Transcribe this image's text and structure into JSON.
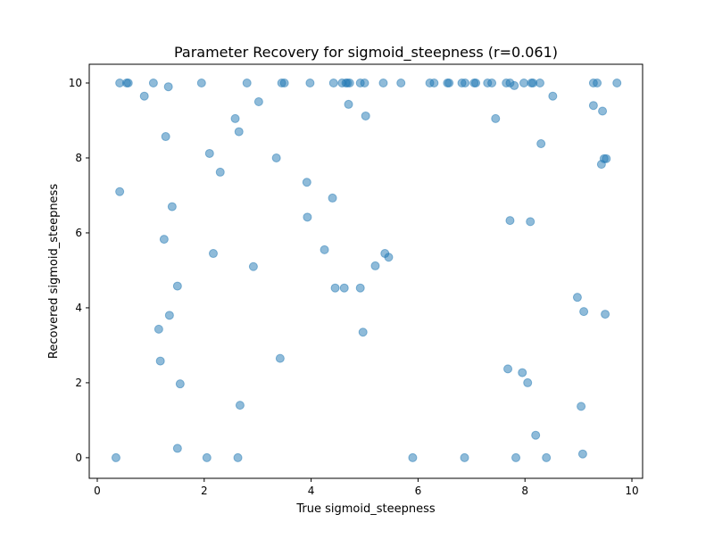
{
  "chart_data": {
    "type": "scatter",
    "title": "Parameter Recovery for sigmoid_steepness (r=0.061)",
    "xlabel": "True sigmoid_steepness",
    "ylabel": "Recovered sigmoid_steepness",
    "xlim": [
      -0.15,
      10.2
    ],
    "ylim": [
      -0.55,
      10.5
    ],
    "x_ticks": [
      0,
      2,
      4,
      6,
      8,
      10
    ],
    "y_ticks": [
      0,
      2,
      4,
      6,
      8,
      10
    ],
    "grid": false,
    "marker_color": "#1f77b4",
    "marker_alpha": 0.5,
    "points": [
      {
        "x": 0.42,
        "y": 10.0
      },
      {
        "x": 0.55,
        "y": 10.0
      },
      {
        "x": 0.58,
        "y": 10.0
      },
      {
        "x": 1.05,
        "y": 10.0
      },
      {
        "x": 1.33,
        "y": 9.9
      },
      {
        "x": 1.95,
        "y": 10.0
      },
      {
        "x": 2.8,
        "y": 10.0
      },
      {
        "x": 3.45,
        "y": 10.0
      },
      {
        "x": 3.5,
        "y": 10.0
      },
      {
        "x": 3.98,
        "y": 10.0
      },
      {
        "x": 4.42,
        "y": 10.0
      },
      {
        "x": 4.58,
        "y": 10.0
      },
      {
        "x": 4.65,
        "y": 10.0
      },
      {
        "x": 4.68,
        "y": 10.0
      },
      {
        "x": 4.72,
        "y": 10.0
      },
      {
        "x": 4.92,
        "y": 10.0
      },
      {
        "x": 5.0,
        "y": 10.0
      },
      {
        "x": 5.35,
        "y": 10.0
      },
      {
        "x": 5.68,
        "y": 10.0
      },
      {
        "x": 6.22,
        "y": 10.0
      },
      {
        "x": 6.3,
        "y": 10.0
      },
      {
        "x": 6.55,
        "y": 10.0
      },
      {
        "x": 6.58,
        "y": 10.0
      },
      {
        "x": 6.82,
        "y": 10.0
      },
      {
        "x": 6.88,
        "y": 10.0
      },
      {
        "x": 7.05,
        "y": 10.0
      },
      {
        "x": 7.08,
        "y": 10.0
      },
      {
        "x": 7.3,
        "y": 10.0
      },
      {
        "x": 7.38,
        "y": 10.0
      },
      {
        "x": 7.65,
        "y": 10.0
      },
      {
        "x": 7.72,
        "y": 10.0
      },
      {
        "x": 7.98,
        "y": 10.0
      },
      {
        "x": 8.12,
        "y": 10.0
      },
      {
        "x": 8.15,
        "y": 10.0
      },
      {
        "x": 8.28,
        "y": 10.0
      },
      {
        "x": 9.28,
        "y": 10.0
      },
      {
        "x": 9.35,
        "y": 10.0
      },
      {
        "x": 9.72,
        "y": 10.0
      },
      {
        "x": 7.8,
        "y": 9.93
      },
      {
        "x": 0.88,
        "y": 9.65
      },
      {
        "x": 8.52,
        "y": 9.65
      },
      {
        "x": 3.02,
        "y": 9.5
      },
      {
        "x": 4.7,
        "y": 9.43
      },
      {
        "x": 9.28,
        "y": 9.4
      },
      {
        "x": 9.45,
        "y": 9.25
      },
      {
        "x": 5.02,
        "y": 9.12
      },
      {
        "x": 2.58,
        "y": 9.05
      },
      {
        "x": 7.45,
        "y": 9.05
      },
      {
        "x": 2.65,
        "y": 8.7
      },
      {
        "x": 1.28,
        "y": 8.57
      },
      {
        "x": 8.3,
        "y": 8.38
      },
      {
        "x": 2.1,
        "y": 8.12
      },
      {
        "x": 3.35,
        "y": 8.0
      },
      {
        "x": 9.48,
        "y": 7.98
      },
      {
        "x": 9.52,
        "y": 7.98
      },
      {
        "x": 9.43,
        "y": 7.83
      },
      {
        "x": 2.3,
        "y": 7.62
      },
      {
        "x": 3.92,
        "y": 7.35
      },
      {
        "x": 0.42,
        "y": 7.1
      },
      {
        "x": 4.4,
        "y": 6.93
      },
      {
        "x": 1.4,
        "y": 6.7
      },
      {
        "x": 3.93,
        "y": 6.42
      },
      {
        "x": 7.72,
        "y": 6.33
      },
      {
        "x": 8.1,
        "y": 6.3
      },
      {
        "x": 1.25,
        "y": 5.83
      },
      {
        "x": 4.25,
        "y": 5.55
      },
      {
        "x": 2.17,
        "y": 5.45
      },
      {
        "x": 5.38,
        "y": 5.45
      },
      {
        "x": 5.45,
        "y": 5.35
      },
      {
        "x": 5.2,
        "y": 5.12
      },
      {
        "x": 2.92,
        "y": 5.1
      },
      {
        "x": 1.5,
        "y": 4.58
      },
      {
        "x": 4.45,
        "y": 4.53
      },
      {
        "x": 4.62,
        "y": 4.53
      },
      {
        "x": 4.92,
        "y": 4.53
      },
      {
        "x": 8.98,
        "y": 4.28
      },
      {
        "x": 9.1,
        "y": 3.9
      },
      {
        "x": 1.35,
        "y": 3.8
      },
      {
        "x": 9.5,
        "y": 3.83
      },
      {
        "x": 1.15,
        "y": 3.43
      },
      {
        "x": 4.97,
        "y": 3.35
      },
      {
        "x": 3.42,
        "y": 2.65
      },
      {
        "x": 1.18,
        "y": 2.58
      },
      {
        "x": 7.68,
        "y": 2.37
      },
      {
        "x": 7.95,
        "y": 2.27
      },
      {
        "x": 8.05,
        "y": 2.0
      },
      {
        "x": 1.55,
        "y": 1.97
      },
      {
        "x": 2.67,
        "y": 1.4
      },
      {
        "x": 9.05,
        "y": 1.37
      },
      {
        "x": 8.2,
        "y": 0.6
      },
      {
        "x": 1.5,
        "y": 0.25
      },
      {
        "x": 9.08,
        "y": 0.1
      },
      {
        "x": 0.35,
        "y": 0.0
      },
      {
        "x": 2.05,
        "y": 0.0
      },
      {
        "x": 2.63,
        "y": 0.0
      },
      {
        "x": 5.9,
        "y": 0.0
      },
      {
        "x": 6.87,
        "y": 0.0
      },
      {
        "x": 7.83,
        "y": 0.0
      },
      {
        "x": 8.4,
        "y": 0.0
      }
    ]
  }
}
